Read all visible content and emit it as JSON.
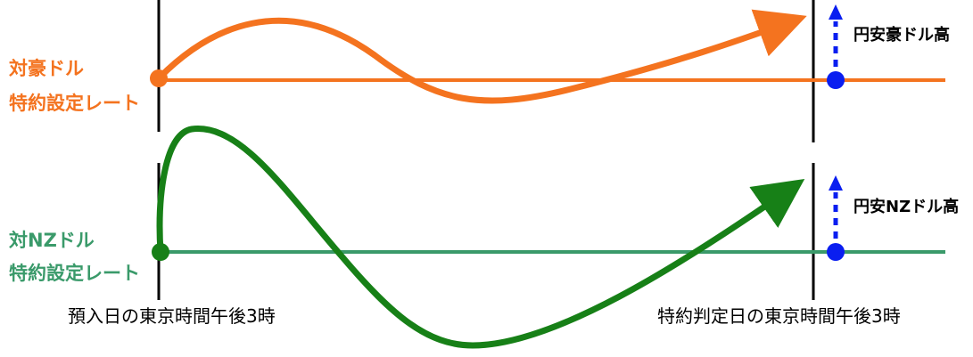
{
  "colors": {
    "aud": "#f4731f",
    "nzd_curve": "#178017",
    "nzd_line": "#3a9a6a",
    "marker": "#0a1ef0",
    "axis": "#000000"
  },
  "aud": {
    "label_line1": "対豪ドル",
    "label_line2": "特約設定レート",
    "move_label": "円安豪ドル高"
  },
  "nzd": {
    "label_line1": "対NZドル",
    "label_line2": "特約設定レート",
    "move_label": "円安NZドル高"
  },
  "timeline": {
    "start_label": "預入日の東京時間午後3時",
    "end_label": "特約判定日の東京時間午後3時"
  }
}
